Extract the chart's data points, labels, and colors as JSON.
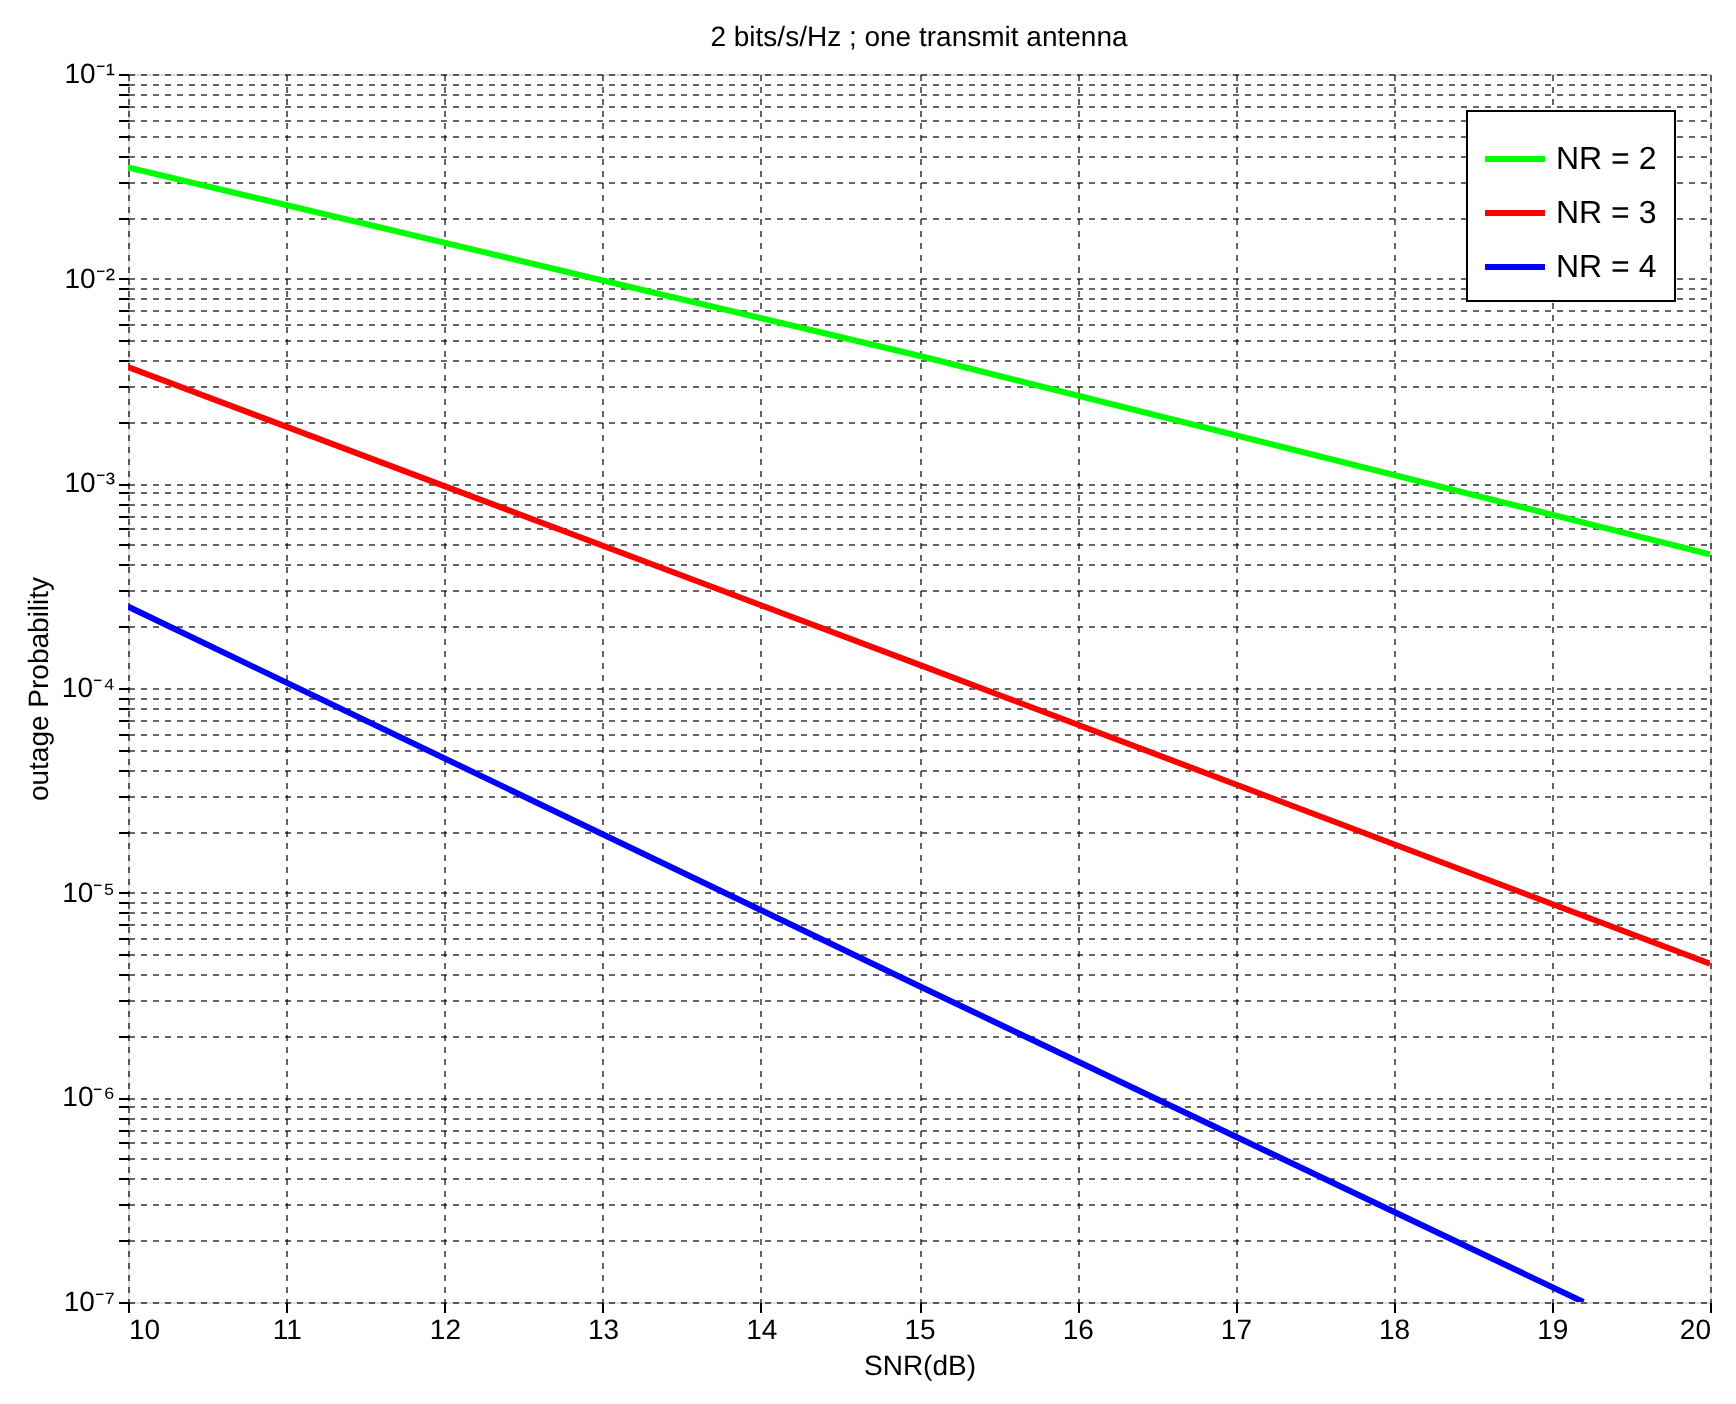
{
  "chart_data": {
    "type": "line",
    "title": "2 bits/s/Hz ; one transmit antenna",
    "xlabel": "SNR(dB)",
    "ylabel": "outage Probability",
    "x": [
      10,
      15,
      20
    ],
    "series": [
      {
        "name": "NR = 2",
        "color": "#00ff00",
        "values": [
          0.035,
          0.0042,
          0.00045
        ]
      },
      {
        "name": "NR = 3",
        "color": "#ff0000",
        "values": [
          0.0037,
          0.00013,
          4.5e-06
        ]
      },
      {
        "name": "NR = 4",
        "color": "#0000ff",
        "x": [
          10,
          15,
          19.2
        ],
        "values": [
          0.00025,
          3.5e-06,
          1e-07
        ]
      }
    ],
    "log": "y",
    "grid": true,
    "legend": "top right",
    "line_style": "solid",
    "marker": "none",
    "xlim": [
      10,
      20
    ],
    "xticks": [
      10,
      11,
      12,
      13,
      14,
      15,
      16,
      17,
      18,
      19,
      20
    ],
    "ylim": [
      1e-07,
      0.1
    ],
    "yticks": [
      {
        "value": 1e-07,
        "label": "10⁻⁷"
      },
      {
        "value": 2e-07,
        "label": null
      },
      {
        "value": 3e-07,
        "label": null
      },
      {
        "value": 4e-07,
        "label": null
      },
      {
        "value": 5e-07,
        "label": null
      },
      {
        "value": 6e-07,
        "label": null
      },
      {
        "value": 7e-07,
        "label": null
      },
      {
        "value": 8e-07,
        "label": null
      },
      {
        "value": 9e-07,
        "label": null
      },
      {
        "value": 1e-06,
        "label": "10⁻⁶"
      },
      {
        "value": 2e-06,
        "label": null
      },
      {
        "value": 3e-06,
        "label": null
      },
      {
        "value": 4e-06,
        "label": null
      },
      {
        "value": 5e-06,
        "label": null
      },
      {
        "value": 6e-06,
        "label": null
      },
      {
        "value": 7e-06,
        "label": null
      },
      {
        "value": 8e-06,
        "label": null
      },
      {
        "value": 9e-06,
        "label": null
      },
      {
        "value": 1e-05,
        "label": "10⁻⁵"
      },
      {
        "value": 2e-05,
        "label": null
      },
      {
        "value": 3e-05,
        "label": null
      },
      {
        "value": 4e-05,
        "label": null
      },
      {
        "value": 5e-05,
        "label": null
      },
      {
        "value": 6e-05,
        "label": null
      },
      {
        "value": 7e-05,
        "label": null
      },
      {
        "value": 8e-05,
        "label": null
      },
      {
        "value": 9e-05,
        "label": null
      },
      {
        "value": 0.0001,
        "label": "10⁻⁴"
      },
      {
        "value": 0.0002,
        "label": null
      },
      {
        "value": 0.0003,
        "label": null
      },
      {
        "value": 0.0004,
        "label": null
      },
      {
        "value": 0.0005,
        "label": null
      },
      {
        "value": 0.0006,
        "label": null
      },
      {
        "value": 0.0007,
        "label": null
      },
      {
        "value": 0.0008,
        "label": null
      },
      {
        "value": 0.0009,
        "label": null
      },
      {
        "value": 0.001,
        "label": "10⁻³"
      },
      {
        "value": 0.002,
        "label": null
      },
      {
        "value": 0.003,
        "label": null
      },
      {
        "value": 0.004,
        "label": null
      },
      {
        "value": 0.005,
        "label": null
      },
      {
        "value": 0.006,
        "label": null
      },
      {
        "value": 0.007,
        "label": null
      },
      {
        "value": 0.008,
        "label": null
      },
      {
        "value": 0.009,
        "label": null
      },
      {
        "value": 0.01,
        "label": "10⁻²"
      },
      {
        "value": 0.02,
        "label": null
      },
      {
        "value": 0.03,
        "label": null
      },
      {
        "value": 0.04,
        "label": null
      },
      {
        "value": 0.05,
        "label": null
      },
      {
        "value": 0.06,
        "label": null
      },
      {
        "value": 0.07,
        "label": null
      },
      {
        "value": 0.08,
        "label": null
      },
      {
        "value": 0.09,
        "label": null
      },
      {
        "value": 0.1,
        "label": "10⁻¹"
      }
    ]
  }
}
